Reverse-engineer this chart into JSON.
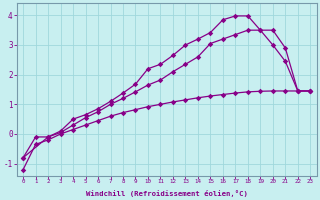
{
  "xlabel": "Windchill (Refroidissement éolien,°C)",
  "xlim": [
    -0.5,
    23.5
  ],
  "ylim": [
    -1.4,
    4.4
  ],
  "xticks": [
    0,
    1,
    2,
    3,
    4,
    5,
    6,
    7,
    8,
    9,
    10,
    11,
    12,
    13,
    14,
    15,
    16,
    17,
    18,
    19,
    20,
    21,
    22,
    23
  ],
  "yticks": [
    -1,
    0,
    1,
    2,
    3,
    4
  ],
  "bg_color": "#c8eff0",
  "line_color": "#880088",
  "grid_color": "#a0d8dc",
  "line1_x": [
    0,
    1,
    2,
    3,
    4,
    5,
    6,
    7,
    8,
    9,
    10,
    11,
    12,
    13,
    14,
    15,
    16,
    17,
    18,
    19,
    20,
    21,
    22,
    23
  ],
  "line1_y": [
    -1.2,
    -0.35,
    -0.2,
    0.0,
    0.15,
    0.3,
    0.45,
    0.6,
    0.72,
    0.82,
    0.92,
    1.0,
    1.08,
    1.15,
    1.22,
    1.28,
    1.33,
    1.38,
    1.42,
    1.44,
    1.45,
    1.45,
    1.45,
    1.45
  ],
  "line2_x": [
    0,
    1,
    2,
    3,
    4,
    5,
    6,
    7,
    8,
    9,
    10,
    11,
    12,
    13,
    14,
    15,
    16,
    17,
    18,
    19,
    20,
    21,
    22,
    23
  ],
  "line2_y": [
    -0.8,
    -0.1,
    -0.1,
    0.05,
    0.3,
    0.55,
    0.75,
    1.0,
    1.2,
    1.42,
    1.65,
    1.82,
    2.1,
    2.35,
    2.6,
    3.05,
    3.2,
    3.35,
    3.5,
    3.5,
    3.0,
    2.45,
    1.45,
    1.45
  ],
  "line3_x": [
    0,
    2,
    3,
    4,
    5,
    6,
    7,
    8,
    9,
    10,
    11,
    12,
    13,
    14,
    15,
    16,
    17,
    18,
    19,
    20,
    21,
    22,
    23
  ],
  "line3_y": [
    -0.8,
    -0.1,
    0.1,
    0.5,
    0.65,
    0.85,
    1.1,
    1.38,
    1.68,
    2.2,
    2.35,
    2.65,
    3.0,
    3.2,
    3.42,
    3.85,
    3.98,
    3.98,
    3.5,
    3.5,
    2.9,
    1.45,
    1.45
  ]
}
